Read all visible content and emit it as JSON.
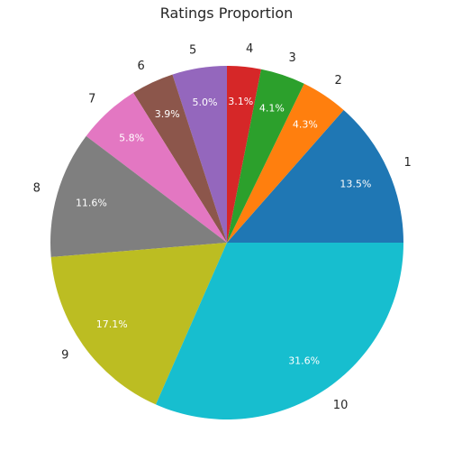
{
  "chart_data": {
    "type": "pie",
    "title": "Ratings Proportion",
    "categories": [
      "1",
      "2",
      "3",
      "4",
      "5",
      "6",
      "7",
      "8",
      "9",
      "10"
    ],
    "values": [
      13.5,
      4.3,
      4.1,
      3.1,
      5.0,
      3.9,
      5.8,
      11.6,
      17.1,
      31.6
    ],
    "percent_labels": [
      "13.5%",
      "4.3%",
      "4.1%",
      "3.1%",
      "5.0%",
      "3.9%",
      "5.8%",
      "11.6%",
      "17.1%",
      "31.6%"
    ],
    "colors": [
      "#1f77b4",
      "#ff7f0e",
      "#2ca02c",
      "#d62728",
      "#9467bd",
      "#8c564b",
      "#e377c2",
      "#7f7f7f",
      "#bcbd22",
      "#17becf"
    ],
    "start_angle_deg": 0,
    "direction": "counterclockwise"
  }
}
